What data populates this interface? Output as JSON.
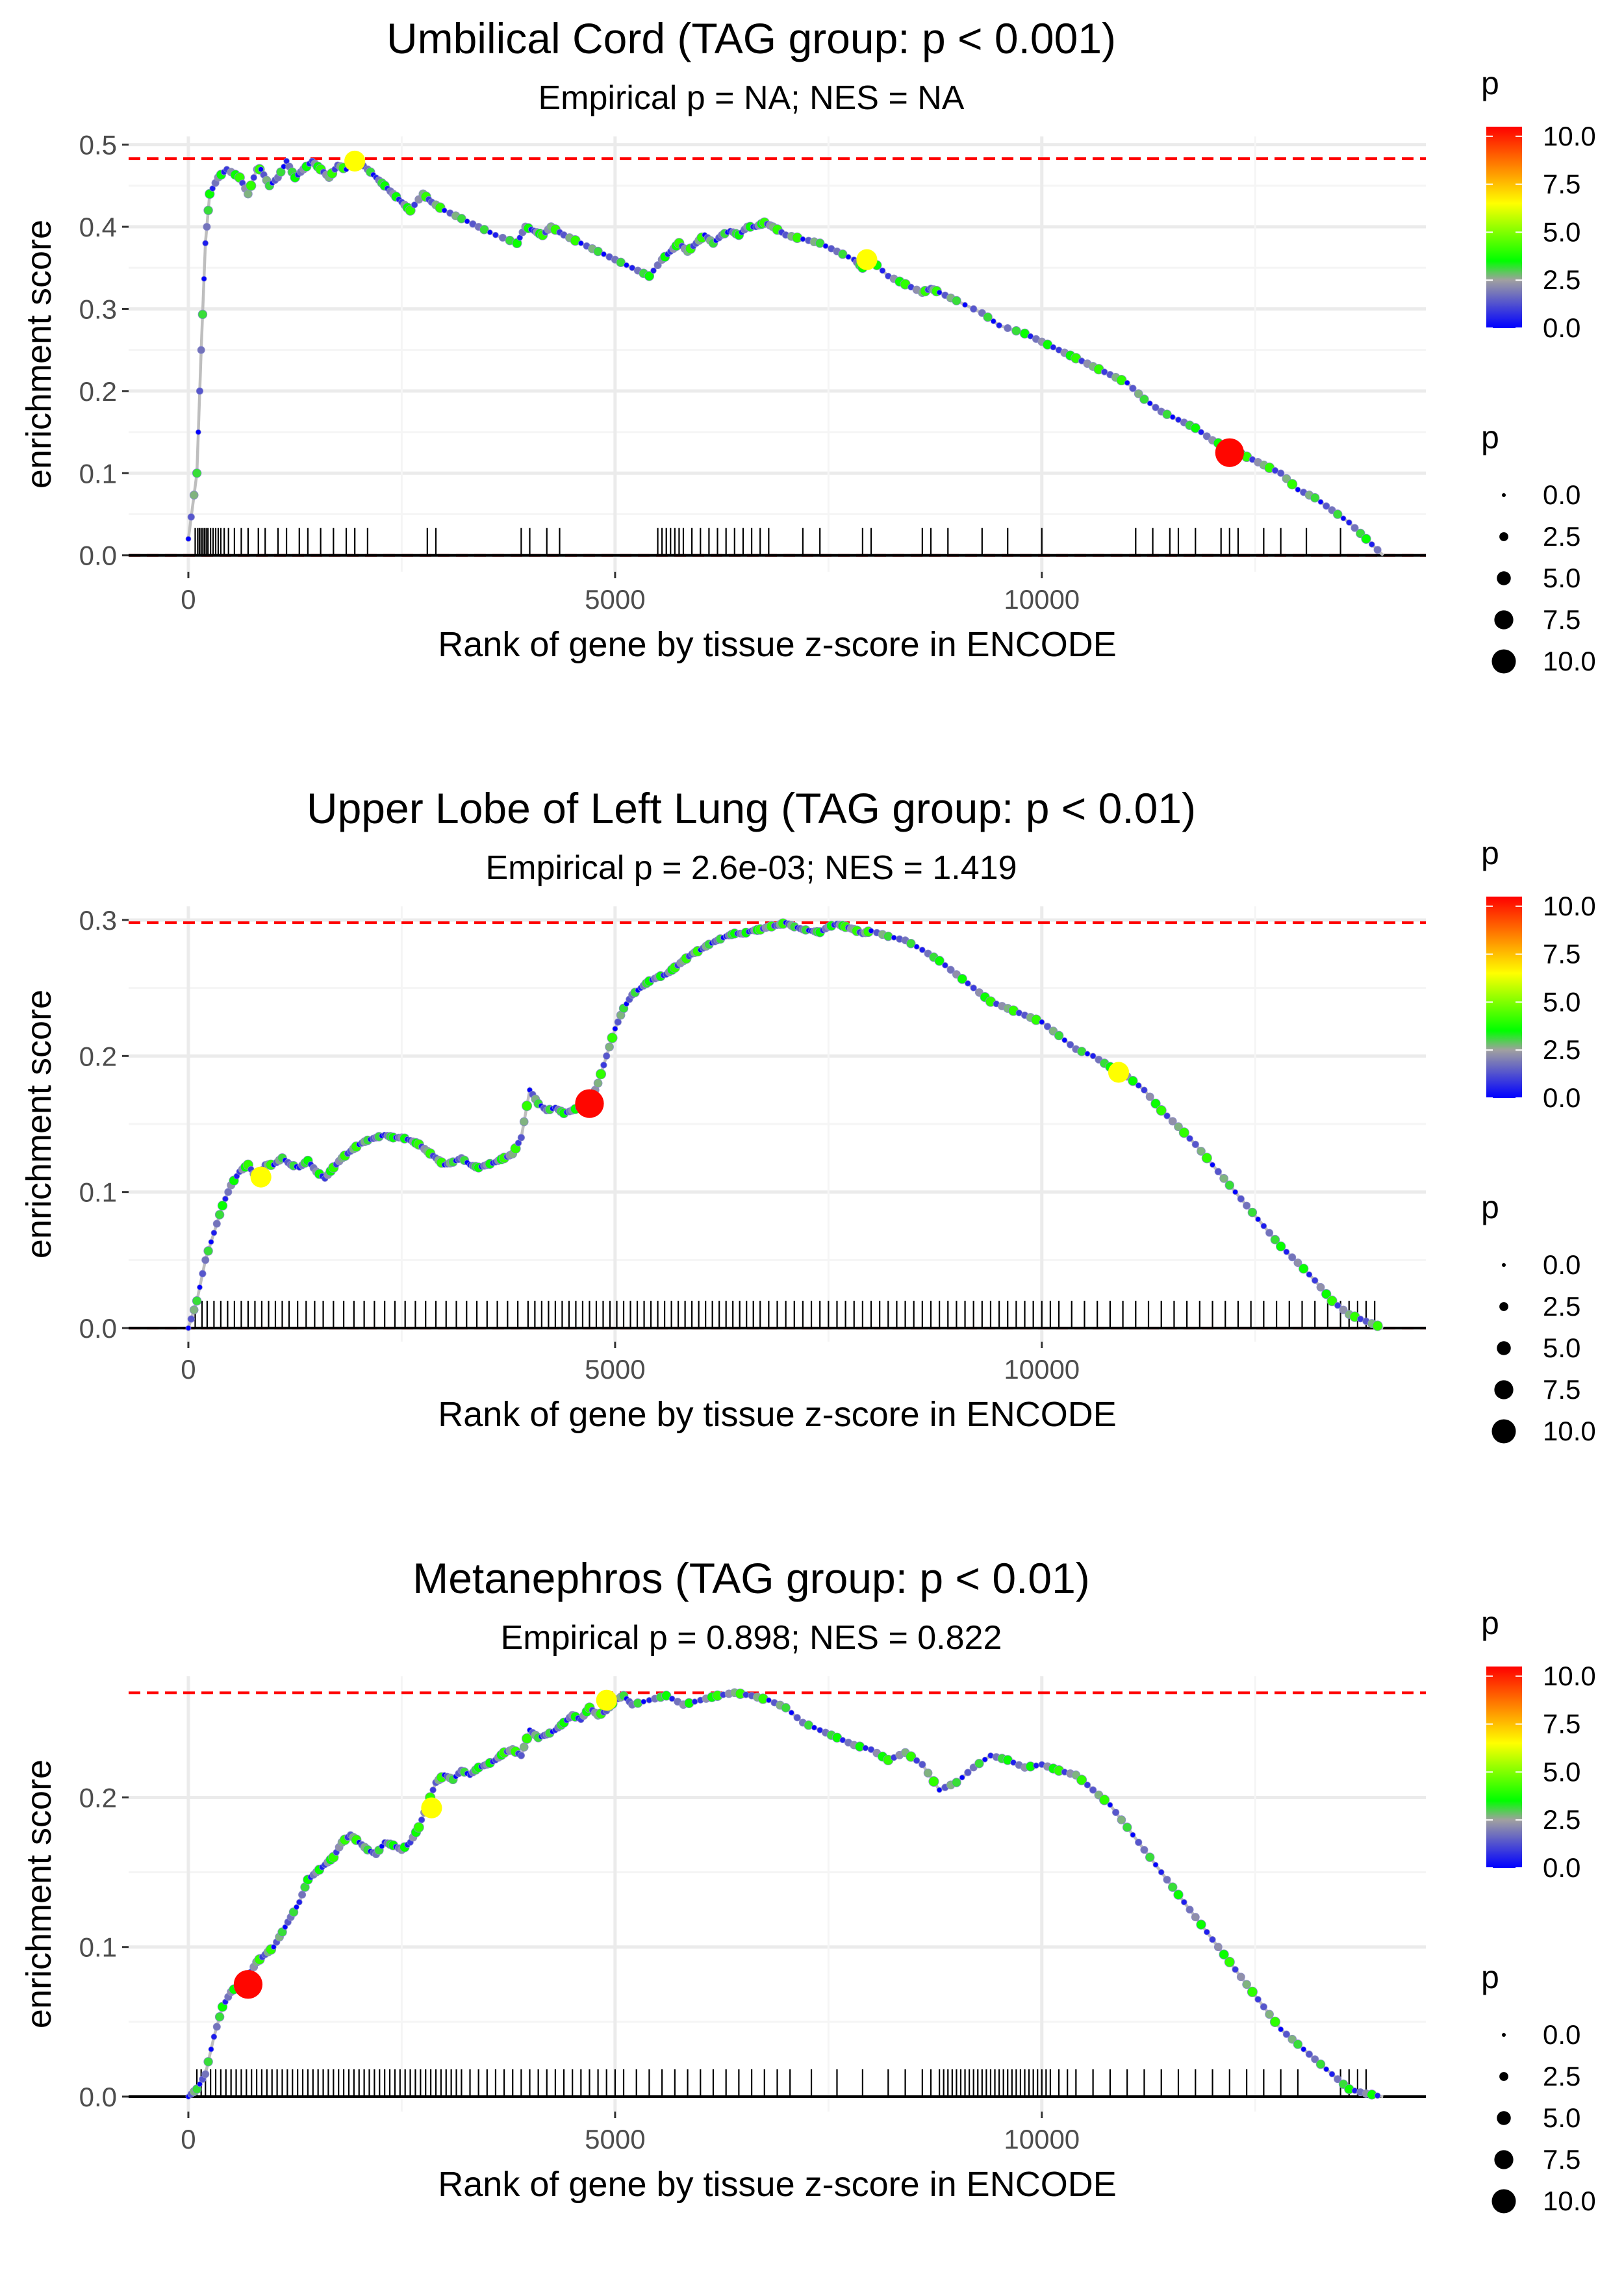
{
  "chart_data": [
    {
      "type": "line",
      "title": "Umbilical Cord (TAG group: p < 0.001)",
      "subtitle": "Empirical p = NA; NES = NA",
      "xlabel": "Rank of gene by tissue z-score in ENCODE",
      "ylabel": "enrichment score",
      "xlim": [
        -700,
        14500
      ],
      "ylim": [
        -0.02,
        0.51
      ],
      "x_ticks": [
        0,
        5000,
        10000
      ],
      "x_tick_labels": [
        "0",
        "5000",
        "10000"
      ],
      "y_ticks": [
        0,
        0.1,
        0.2,
        0.3,
        0.4,
        0.5
      ],
      "y_tick_labels": [
        "0.0",
        "0.1",
        "0.2",
        "0.3",
        "0.4",
        "0.5"
      ],
      "max_es": 0.483,
      "min_es": 0.0,
      "grid": true,
      "legend_position": "right",
      "curve": {
        "x": [
          0,
          100,
          150,
          200,
          250,
          350,
          450,
          600,
          700,
          800,
          850,
          950,
          1050,
          1150,
          1250,
          1350,
          1450,
          1550,
          1650,
          1750,
          1850,
          1950,
          2100,
          2200,
          2300,
          2400,
          2500,
          2600,
          2750,
          2850,
          3000,
          3200,
          3400,
          3600,
          3850,
          3950,
          4050,
          4150,
          4250,
          4400,
          4600,
          4800,
          5000,
          5200,
          5400,
          5550,
          5650,
          5750,
          5850,
          5950,
          6050,
          6150,
          6250,
          6350,
          6450,
          6550,
          6650,
          6750,
          6850,
          7000,
          7200,
          7400,
          7600,
          7800,
          7900,
          8000,
          8200,
          8400,
          8600,
          8700,
          8800,
          9000,
          9300,
          9500,
          9800,
          10000,
          10200,
          10400,
          10600,
          10800,
          11000,
          11200,
          11400,
          11600,
          11800,
          12000,
          12200,
          12400,
          12600,
          12800,
          13000,
          13200,
          13400,
          13600,
          13800,
          14000
        ],
        "y": [
          0.02,
          0.1,
          0.25,
          0.38,
          0.44,
          0.46,
          0.47,
          0.46,
          0.44,
          0.47,
          0.47,
          0.45,
          0.46,
          0.48,
          0.46,
          0.47,
          0.48,
          0.47,
          0.46,
          0.475,
          0.47,
          0.483,
          0.47,
          0.46,
          0.45,
          0.44,
          0.43,
          0.42,
          0.44,
          0.43,
          0.42,
          0.41,
          0.4,
          0.39,
          0.38,
          0.4,
          0.395,
          0.39,
          0.4,
          0.39,
          0.38,
          0.37,
          0.36,
          0.35,
          0.34,
          0.36,
          0.37,
          0.38,
          0.37,
          0.38,
          0.39,
          0.38,
          0.39,
          0.395,
          0.39,
          0.4,
          0.4,
          0.405,
          0.4,
          0.39,
          0.385,
          0.38,
          0.37,
          0.36,
          0.35,
          0.36,
          0.34,
          0.33,
          0.32,
          0.325,
          0.32,
          0.31,
          0.295,
          0.28,
          0.27,
          0.26,
          0.25,
          0.24,
          0.23,
          0.22,
          0.21,
          0.19,
          0.175,
          0.165,
          0.155,
          0.14,
          0.13,
          0.12,
          0.11,
          0.1,
          0.08,
          0.07,
          0.055,
          0.04,
          0.02,
          0.0
        ]
      },
      "highlights": [
        {
          "x": 1950,
          "y": 0.48,
          "p": 6.5
        },
        {
          "x": 7950,
          "y": 0.36,
          "p": 6.5
        },
        {
          "x": 12200,
          "y": 0.125,
          "p": 10.4
        }
      ],
      "rug_x": [
        80,
        110,
        130,
        150,
        170,
        190,
        210,
        230,
        260,
        290,
        320,
        350,
        380,
        420,
        470,
        540,
        620,
        700,
        820,
        900,
        1050,
        1150,
        1300,
        1400,
        1550,
        1700,
        1850,
        1950,
        2100,
        2800,
        2900,
        3900,
        4000,
        4200,
        4350,
        5500,
        5550,
        5600,
        5650,
        5700,
        5750,
        5800,
        5900,
        6000,
        6100,
        6200,
        6300,
        6400,
        6500,
        6600,
        6700,
        6800,
        7200,
        7400,
        7900,
        8000,
        8600,
        8700,
        8900,
        9300,
        9600,
        10000,
        11100,
        11300,
        11500,
        11600,
        11800,
        12100,
        12200,
        12300,
        12600,
        12800,
        13100,
        13500
      ]
    },
    {
      "type": "line",
      "title": "Upper Lobe of Left Lung (TAG group: p < 0.01)",
      "subtitle": "Empirical p = 2.6e-03; NES = 1.419",
      "xlabel": "Rank of gene by tissue z-score in ENCODE",
      "ylabel": "enrichment score",
      "xlim": [
        -700,
        14500
      ],
      "ylim": [
        -0.01,
        0.31
      ],
      "x_ticks": [
        0,
        5000,
        10000
      ],
      "x_tick_labels": [
        "0",
        "5000",
        "10000"
      ],
      "y_ticks": [
        0,
        0.1,
        0.2,
        0.3
      ],
      "y_tick_labels": [
        "0.0",
        "0.1",
        "0.2",
        "0.3"
      ],
      "max_es": 0.298,
      "min_es": 0.0,
      "grid": true,
      "legend_position": "right",
      "curve": {
        "x": [
          0,
          100,
          200,
          300,
          400,
          500,
          600,
          700,
          800,
          900,
          1000,
          1100,
          1200,
          1300,
          1400,
          1500,
          1600,
          1700,
          1800,
          1900,
          2000,
          2100,
          2200,
          2300,
          2400,
          2500,
          2600,
          2700,
          2800,
          2900,
          3000,
          3100,
          3200,
          3300,
          3400,
          3500,
          3600,
          3700,
          3800,
          3900,
          4000,
          4100,
          4200,
          4300,
          4400,
          4500,
          4600,
          4700,
          4800,
          4900,
          5000,
          5100,
          5200,
          5300,
          5400,
          5500,
          5600,
          5700,
          5800,
          5900,
          6000,
          6100,
          6200,
          6300,
          6400,
          6500,
          6600,
          6700,
          6800,
          6900,
          7000,
          7100,
          7200,
          7300,
          7400,
          7500,
          7600,
          7700,
          7800,
          7900,
          8000,
          8200,
          8400,
          8600,
          8800,
          9000,
          9200,
          9400,
          9600,
          9800,
          10000,
          10200,
          10400,
          10600,
          10800,
          11000,
          11200,
          11400,
          11600,
          11800,
          12000,
          12200,
          12400,
          12600,
          12800,
          13000,
          13200,
          13400,
          13600,
          13800,
          14000
        ],
        "y": [
          0.0,
          0.02,
          0.05,
          0.07,
          0.09,
          0.105,
          0.115,
          0.12,
          0.11,
          0.12,
          0.12,
          0.125,
          0.12,
          0.118,
          0.123,
          0.115,
          0.11,
          0.118,
          0.125,
          0.13,
          0.135,
          0.138,
          0.14,
          0.142,
          0.14,
          0.14,
          0.138,
          0.135,
          0.13,
          0.125,
          0.12,
          0.122,
          0.125,
          0.12,
          0.118,
          0.12,
          0.122,
          0.125,
          0.128,
          0.14,
          0.175,
          0.165,
          0.16,
          0.162,
          0.158,
          0.16,
          0.163,
          0.165,
          0.18,
          0.2,
          0.22,
          0.235,
          0.245,
          0.25,
          0.255,
          0.258,
          0.26,
          0.265,
          0.27,
          0.275,
          0.278,
          0.282,
          0.285,
          0.288,
          0.29,
          0.29,
          0.292,
          0.293,
          0.295,
          0.296,
          0.298,
          0.295,
          0.293,
          0.292,
          0.291,
          0.295,
          0.297,
          0.295,
          0.293,
          0.29,
          0.292,
          0.288,
          0.285,
          0.278,
          0.27,
          0.26,
          0.25,
          0.24,
          0.235,
          0.23,
          0.225,
          0.215,
          0.205,
          0.2,
          0.192,
          0.185,
          0.175,
          0.16,
          0.148,
          0.135,
          0.12,
          0.105,
          0.09,
          0.075,
          0.06,
          0.048,
          0.035,
          0.02,
          0.01,
          0.005,
          0.0
        ]
      },
      "highlights": [
        {
          "x": 850,
          "y": 0.111,
          "p": 6.5
        },
        {
          "x": 4700,
          "y": 0.165,
          "p": 10.4
        },
        {
          "x": 10900,
          "y": 0.188,
          "p": 6.5
        }
      ],
      "rug_x": [
        80,
        160,
        220,
        300,
        380,
        460,
        540,
        620,
        700,
        780,
        860,
        940,
        1020,
        1100,
        1180,
        1280,
        1380,
        1480,
        1580,
        1700,
        1820,
        1940,
        2060,
        2180,
        2300,
        2420,
        2540,
        2660,
        2780,
        2900,
        3020,
        3140,
        3260,
        3380,
        3500,
        3620,
        3740,
        3860,
        3980,
        4060,
        4140,
        4220,
        4300,
        4380,
        4460,
        4540,
        4620,
        4700,
        4780,
        4860,
        4940,
        5020,
        5100,
        5180,
        5260,
        5340,
        5420,
        5500,
        5580,
        5660,
        5740,
        5820,
        5900,
        5980,
        6060,
        6140,
        6220,
        6300,
        6380,
        6460,
        6540,
        6620,
        6700,
        6800,
        6900,
        7000,
        7100,
        7200,
        7300,
        7400,
        7500,
        7600,
        7700,
        7800,
        7900,
        8000,
        8100,
        8200,
        8300,
        8400,
        8500,
        8600,
        8700,
        8800,
        8900,
        9000,
        9100,
        9200,
        9300,
        9400,
        9500,
        9600,
        9700,
        9800,
        9900,
        10000,
        10100,
        10200,
        10350,
        10500,
        10650,
        10800,
        10950,
        11100,
        11250,
        11400,
        11550,
        11700,
        11850,
        12000,
        12150,
        12300,
        12450,
        12600,
        12750,
        12900,
        13050,
        13200,
        13350,
        13500,
        13600,
        13700,
        13800,
        13900
      ]
    },
    {
      "type": "line",
      "title": "Metanephros (TAG group: p < 0.01)",
      "subtitle": "Empirical p = 0.898; NES = 0.822",
      "xlabel": "Rank of gene by tissue z-score in ENCODE",
      "ylabel": "enrichment score",
      "xlim": [
        -700,
        14500
      ],
      "ylim": [
        -0.01,
        0.281
      ],
      "x_ticks": [
        0,
        5000,
        10000
      ],
      "x_tick_labels": [
        "0",
        "5000",
        "10000"
      ],
      "y_ticks": [
        0,
        0.1,
        0.2
      ],
      "y_tick_labels": [
        "0.0",
        "0.1",
        "0.2"
      ],
      "max_es": 0.27,
      "min_es": 0.0,
      "grid": true,
      "legend_position": "right",
      "curve": {
        "x": [
          0,
          100,
          200,
          300,
          400,
          500,
          600,
          700,
          800,
          900,
          1000,
          1100,
          1200,
          1300,
          1400,
          1500,
          1600,
          1700,
          1800,
          1900,
          2000,
          2100,
          2200,
          2300,
          2400,
          2500,
          2600,
          2700,
          2800,
          2900,
          3000,
          3100,
          3200,
          3300,
          3400,
          3500,
          3600,
          3700,
          3800,
          3900,
          4000,
          4100,
          4200,
          4300,
          4400,
          4500,
          4600,
          4700,
          4800,
          4900,
          5000,
          5100,
          5200,
          5400,
          5600,
          5800,
          6000,
          6200,
          6400,
          6600,
          6800,
          7000,
          7200,
          7400,
          7600,
          7800,
          8000,
          8200,
          8400,
          8600,
          8800,
          9000,
          9200,
          9400,
          9600,
          9800,
          10000,
          10200,
          10400,
          10600,
          10800,
          11000,
          11200,
          11400,
          11600,
          11800,
          12000,
          12200,
          12400,
          12600,
          12800,
          13000,
          13200,
          13400,
          13600,
          13800,
          14000
        ],
        "y": [
          0.0,
          0.005,
          0.015,
          0.04,
          0.06,
          0.07,
          0.075,
          0.08,
          0.09,
          0.095,
          0.1,
          0.11,
          0.12,
          0.13,
          0.145,
          0.15,
          0.155,
          0.16,
          0.17,
          0.175,
          0.17,
          0.165,
          0.162,
          0.17,
          0.168,
          0.165,
          0.17,
          0.18,
          0.195,
          0.21,
          0.215,
          0.212,
          0.218,
          0.215,
          0.22,
          0.222,
          0.225,
          0.23,
          0.232,
          0.228,
          0.245,
          0.24,
          0.242,
          0.245,
          0.25,
          0.255,
          0.252,
          0.26,
          0.255,
          0.258,
          0.265,
          0.268,
          0.262,
          0.265,
          0.268,
          0.262,
          0.265,
          0.268,
          0.27,
          0.268,
          0.265,
          0.26,
          0.25,
          0.245,
          0.24,
          0.235,
          0.232,
          0.225,
          0.23,
          0.222,
          0.205,
          0.21,
          0.22,
          0.228,
          0.225,
          0.22,
          0.222,
          0.218,
          0.215,
          0.205,
          0.195,
          0.18,
          0.165,
          0.15,
          0.135,
          0.12,
          0.105,
          0.09,
          0.075,
          0.06,
          0.045,
          0.035,
          0.025,
          0.015,
          0.005,
          0.002,
          0.0
        ]
      },
      "highlights": [
        {
          "x": 700,
          "y": 0.075,
          "p": 10.4
        },
        {
          "x": 2850,
          "y": 0.193,
          "p": 6.5
        },
        {
          "x": 4900,
          "y": 0.265,
          "p": 6.5
        }
      ],
      "rug_x": [
        100,
        150,
        200,
        260,
        320,
        380,
        440,
        500,
        560,
        620,
        680,
        740,
        800,
        860,
        920,
        980,
        1040,
        1100,
        1160,
        1220,
        1280,
        1340,
        1400,
        1460,
        1520,
        1580,
        1640,
        1700,
        1760,
        1820,
        1880,
        1940,
        2000,
        2060,
        2120,
        2180,
        2240,
        2300,
        2360,
        2420,
        2480,
        2540,
        2600,
        2660,
        2720,
        2780,
        2840,
        2900,
        2960,
        3020,
        3080,
        3140,
        3200,
        3300,
        3400,
        3500,
        3600,
        3700,
        3800,
        3900,
        4000,
        4100,
        4200,
        4300,
        4400,
        4500,
        4600,
        4700,
        4800,
        4900,
        5000,
        5100,
        5250,
        5400,
        5550,
        5700,
        5850,
        6000,
        6150,
        6300,
        6450,
        6600,
        6750,
        6900,
        7050,
        7300,
        7600,
        7900,
        8200,
        8400,
        8600,
        8700,
        8800,
        8850,
        8900,
        8950,
        9000,
        9050,
        9100,
        9150,
        9200,
        9250,
        9300,
        9350,
        9400,
        9450,
        9500,
        9550,
        9600,
        9650,
        9700,
        9750,
        9800,
        9850,
        9900,
        9950,
        10000,
        10050,
        10100,
        10200,
        10300,
        10400,
        10600,
        10800,
        11000,
        11200,
        11400,
        11600,
        11800,
        12000,
        12200,
        12400,
        12600,
        12800,
        13000,
        13500,
        13600,
        13700,
        13800
      ]
    }
  ],
  "legends": {
    "color_title": "p",
    "color_tick_labels": [
      "10.0",
      "7.5",
      "5.0",
      "2.5",
      "0.0"
    ],
    "color_tick_values": [
      10,
      7.5,
      5,
      2.5,
      0
    ],
    "color_range": [
      0,
      10.5
    ],
    "color_stops": [
      {
        "value": 0,
        "color": "#0000ff"
      },
      {
        "value": 2.5,
        "color": "#a0a0a0"
      },
      {
        "value": 3.5,
        "color": "#00ff00"
      },
      {
        "value": 6.5,
        "color": "#ffff00"
      },
      {
        "value": 10.5,
        "color": "#ff0000"
      }
    ],
    "size_title": "p",
    "size_values": [
      0,
      2.5,
      5,
      7.5,
      10
    ],
    "size_labels": [
      "0.0",
      "2.5",
      "5.0",
      "7.5",
      "10.0"
    ]
  },
  "colors": {
    "grid": "#ebebeb",
    "reference_line": "#ff0000",
    "curve_line": "#bebebe",
    "rug": "#000000"
  }
}
